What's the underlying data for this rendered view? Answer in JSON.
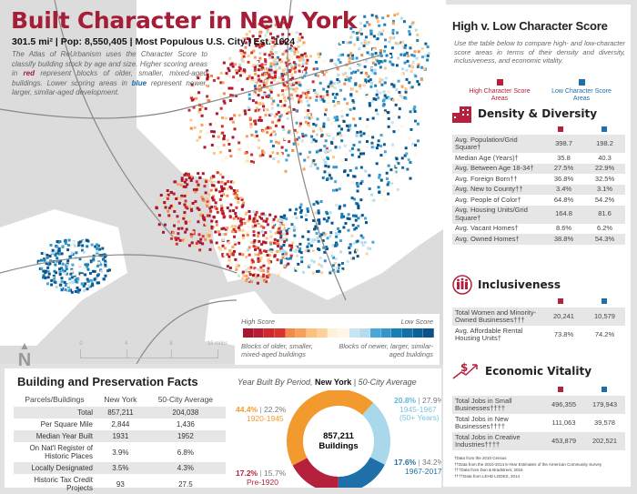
{
  "header": {
    "title": "Built Character in New York",
    "stats": "301.5 mi² | Pop: 8,550,405 | Most Populous U.S. City | Est. 1624",
    "intro_1": "The Atlas of ReUrbanism uses the Character Score to classify building stock by age and size. Higher scoring areas in ",
    "intro_red": "red",
    "intro_2": " represent blocks of older, smaller, mixed-aged buildings. Lower scoring areas in ",
    "intro_blue": "blue",
    "intro_3": " represent newer, larger, similar-aged development."
  },
  "map": {
    "north": "N",
    "scale": [
      "0",
      "4",
      "8",
      "12 miles"
    ],
    "legend": {
      "high": "High Score",
      "low": "Low Score",
      "high_desc": "Blocks of older, smaller, mixed-aged buildings",
      "low_desc": "Blocks of newer, larger, similar-aged buildings",
      "colors": [
        "#a8162f",
        "#b81e33",
        "#cf2a2c",
        "#d8352e",
        "#f28a4c",
        "#f7a05a",
        "#fcc27c",
        "#fdd197",
        "#fdf1d9",
        "#fef6e8",
        "#c6e4f1",
        "#b5dcee",
        "#4aa6d6",
        "#3596cc",
        "#157fb6",
        "#126fa8",
        "#0d5f98",
        "#0a528b"
      ]
    }
  },
  "facts": {
    "title": "Building and Preservation Facts",
    "headers": [
      "Parcels/Buildings",
      "New York",
      "50-City Average"
    ],
    "rows": [
      [
        "Total",
        "857,211",
        "204,038"
      ],
      [
        "Per Square Mile",
        "2,844",
        "1,436"
      ],
      [
        "Median Year Built",
        "1931",
        "1952"
      ],
      [
        "On Nat'l Register of Historic Places",
        "3.9%",
        "6.8%"
      ],
      [
        "Locally Designated",
        "3.5%",
        "4.3%"
      ],
      [
        "Historic Tax Credit Projects",
        "93",
        "27.5"
      ]
    ]
  },
  "chart_data": {
    "type": "pie",
    "title_1": "Year Built By Period, ",
    "title_city": "New York",
    "title_sep": " | ",
    "title_avg": "50-City Average",
    "center_value": "857,211",
    "center_label": "Buildings",
    "slices": [
      {
        "label": "1945-1967 (50+ Years)",
        "value": 20.8,
        "avg": "27.9%",
        "pct": "20.8%",
        "color": "#a9d8ea"
      },
      {
        "label": "1967-2017",
        "value": 17.6,
        "avg": "34.2%",
        "pct": "17.6%",
        "color": "#1f6fa8"
      },
      {
        "label": "Pre-1920",
        "value": 17.2,
        "avg": "15.7%",
        "pct": "17.2%",
        "color": "#b5213c"
      },
      {
        "label": "1920-1945",
        "value": 44.4,
        "avg": "22.2%",
        "pct": "44.4%",
        "color": "#f29a2e"
      }
    ]
  },
  "right": {
    "title": "High v. Low Character Score",
    "desc": "Use the table below to compare high- and low-character score areas in terms of their density and diversity, inclusiveness, and economic vitality.",
    "high_key": "High Character Score Areas",
    "low_key": "Low Character Score Areas",
    "high_color": "#b5213c",
    "low_color": "#1f6fa8",
    "density": {
      "title": "Density & Diversity",
      "rows": [
        [
          "Avg. Population/Grid Square†",
          "398.7",
          "198.2"
        ],
        [
          "Median Age (Years)†",
          "35.8",
          "40.3"
        ],
        [
          "Avg. Between Age 18-34†",
          "27.5%",
          "22.9%"
        ],
        [
          "Avg. Foreign Born††",
          "36.8%",
          "32.5%"
        ],
        [
          "Avg. New to County††",
          "3.4%",
          "3.1%"
        ],
        [
          "Avg. People of Color†",
          "64.8%",
          "54.2%"
        ],
        [
          "Avg. Housing Units/Grid Square†",
          "164.8",
          "81.6"
        ],
        [
          "Avg. Vacant Homes†",
          "8.6%",
          "6.2%"
        ],
        [
          "Avg. Owned Homes†",
          "38.8%",
          "54.3%"
        ]
      ]
    },
    "inclusive": {
      "title": "Inclusiveness",
      "rows": [
        [
          "Total Women and Minority-Owned Businesses†††",
          "20,241",
          "10,579"
        ],
        [
          "Avg. Affordable Rental Housing Units†",
          "73.8%",
          "74.2%"
        ]
      ]
    },
    "economic": {
      "title": "Economic Vitality",
      "rows": [
        [
          "Total Jobs in Small Businesses††††",
          "496,355",
          "179,943"
        ],
        [
          "Total Jobs in New Businesses††††",
          "111,063",
          "39,578"
        ],
        [
          "Total Jobs in Creative Industries††††",
          "453,879",
          "202,521"
        ]
      ]
    },
    "notes": [
      "†Data from the 2010 Census",
      "††Data from the 2010-2014 5-Year Estimates of the American Community Survey",
      "†††Data from Dun & Bradstreet, 2016",
      "††††Data from LEHD LODES, 2014"
    ]
  }
}
